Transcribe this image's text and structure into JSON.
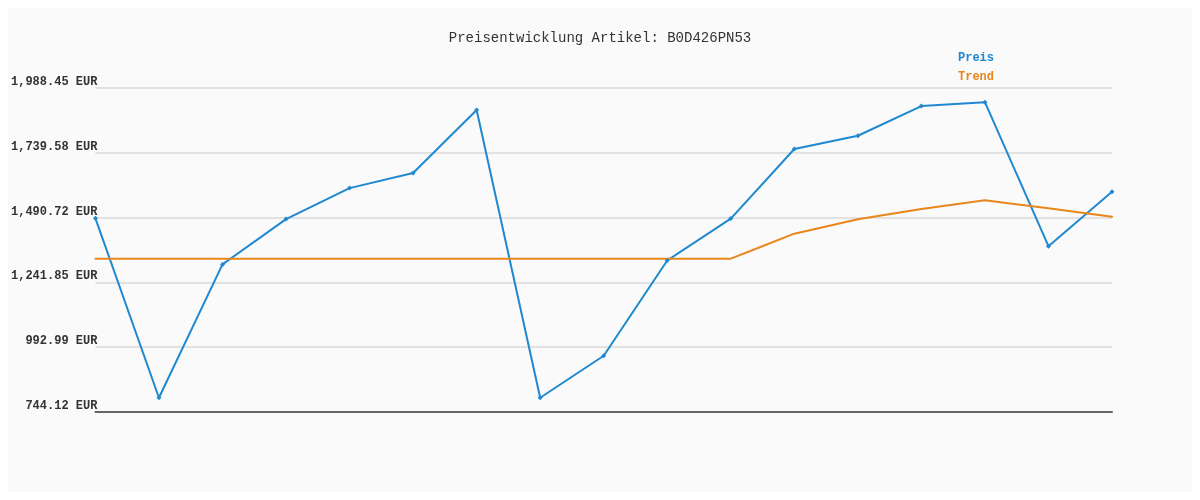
{
  "chart_data": {
    "type": "line",
    "title": "Preisentwicklung Artikel: B0D426PN53",
    "categories": [
      null,
      null,
      null,
      null,
      null,
      null,
      null,
      null,
      null,
      null,
      null,
      null,
      null,
      null,
      null,
      null,
      null
    ],
    "series": [
      {
        "name": "Preis",
        "color": "#1f88d0",
        "marker": "diamond",
        "values": [
          1488,
          799,
          1311,
          1485,
          1604,
          1662,
          1904,
          799,
          960,
          1326,
          1487,
          1754,
          1805,
          1919,
          1934,
          1381,
          1590
        ]
      },
      {
        "name": "Trend",
        "color": "#e8861c",
        "marker": "none",
        "values": [
          1333,
          1333,
          1333,
          1333,
          1333,
          1333,
          1333,
          1333,
          1333,
          1333,
          1333,
          1429,
          1484,
          1524,
          1557,
          1527,
          1494
        ]
      }
    ],
    "ylim": [
      744.12,
      1988.45
    ],
    "yticks": [
      {
        "value": 744.12,
        "label": "744.12 EUR"
      },
      {
        "value": 992.99,
        "label": "992.99 EUR"
      },
      {
        "value": 1241.85,
        "label": "1,241.85 EUR"
      },
      {
        "value": 1490.72,
        "label": "1,490.72 EUR"
      },
      {
        "value": 1739.58,
        "label": "1,739.58 EUR"
      },
      {
        "value": 1988.45,
        "label": "1,988.45 EUR"
      }
    ],
    "grid": "y",
    "legend": "top right",
    "line_style": "solid"
  }
}
